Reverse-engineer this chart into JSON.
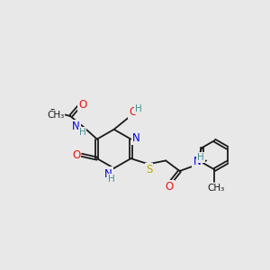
{
  "background_color": "#e8e8e8",
  "colors": {
    "bond": "#1a1a1a",
    "N": "#0000dd",
    "O": "#ee1111",
    "S": "#bbaa00",
    "H": "#4a9090",
    "C": "#1a1a1a"
  },
  "bond_lw": 1.3,
  "font_size": 8.5,
  "fig_size": [
    3.0,
    3.0
  ],
  "dpi": 100
}
